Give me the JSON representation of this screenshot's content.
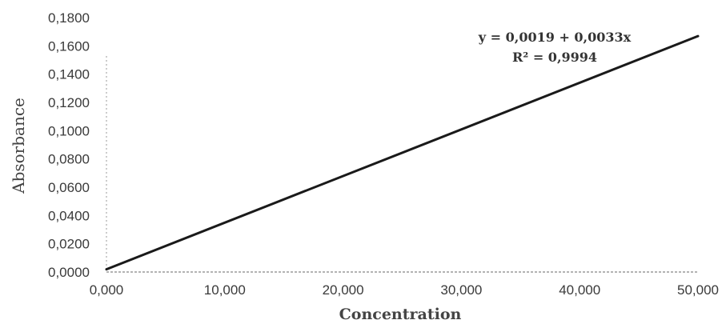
{
  "chart_data": {
    "type": "line",
    "xlabel": "Concentration",
    "ylabel": "Absorbance",
    "x_ticks": [
      "0,000",
      "10,000",
      "20,000",
      "30,000",
      "40,000",
      "50,000"
    ],
    "y_ticks": [
      "0,0000",
      "0,0200",
      "0,0400",
      "0,0600",
      "0,0800",
      "0,1000",
      "0,1200",
      "0,1400",
      "0,1600",
      "0,1800"
    ],
    "xlim": [
      0,
      50
    ],
    "ylim": [
      0,
      0.18
    ],
    "series": [
      {
        "x": [
          0,
          50
        ],
        "y": [
          0.0019,
          0.1669
        ]
      }
    ],
    "annotations": {
      "equation": "y = 0,0019 + 0,0033x",
      "r_squared": "R² = 0,9994"
    },
    "colors": {
      "line": "#1a1a1a",
      "axis": "#9a9a9a",
      "text": "#3a3a3a"
    }
  }
}
